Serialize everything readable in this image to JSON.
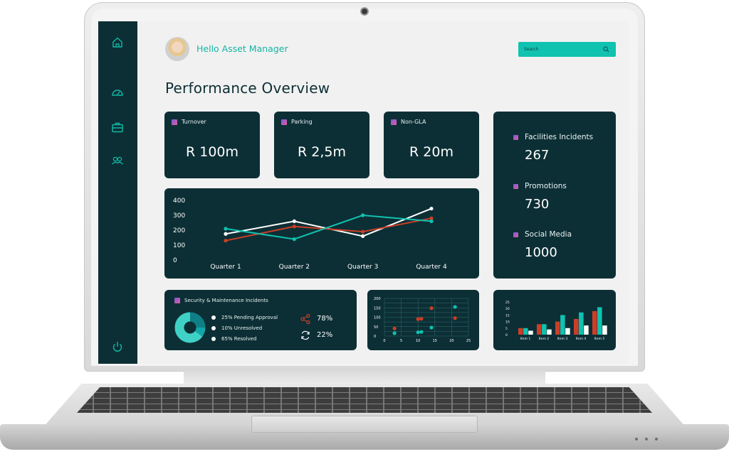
{
  "app": {
    "greeting": "Hello Asset Manager",
    "search_placeholder": "Search",
    "page_title": "Performance Overview"
  },
  "sidebar": {
    "items": [
      {
        "icon": "home-icon"
      },
      {
        "icon": "dashboard-gauge-icon"
      },
      {
        "icon": "briefcase-icon"
      },
      {
        "icon": "users-icon"
      },
      {
        "icon": "power-icon"
      }
    ]
  },
  "kpis": [
    {
      "label": "Turnover",
      "value": "R 100m"
    },
    {
      "label": "Parking",
      "value": "R 2,5m"
    },
    {
      "label": "Non-GLA",
      "value": "R 20m"
    }
  ],
  "side_stats": [
    {
      "label": "Facilities Incidents",
      "value": "267"
    },
    {
      "label": "Promotions",
      "value": "730"
    },
    {
      "label": "Social Media",
      "value": "1000"
    }
  ],
  "security": {
    "title": "Security & Maintenance Incidents",
    "legend": [
      {
        "label": "25% Pending Approval",
        "value": 25
      },
      {
        "label": "10% Unresolved",
        "value": 10
      },
      {
        "label": "65% Resolved",
        "value": 65
      }
    ],
    "share_pct": "78%",
    "refresh_pct": "22%"
  },
  "colors": {
    "dark": "#0c2f35",
    "teal": "#10c2b0",
    "red": "#cc3e27",
    "white": "#ffffff",
    "donut": [
      "#0f7f86",
      "#12a6a8",
      "#3fd1c6"
    ]
  },
  "chart_data": [
    {
      "type": "line",
      "categories": [
        "Quarter 1",
        "Quarter 2",
        "Quarter 3",
        "Quarter 4"
      ],
      "yticks": [
        0,
        100,
        200,
        300,
        400
      ],
      "ylim": [
        0,
        400
      ],
      "grid": false,
      "series": [
        {
          "color": "#ffffff",
          "values": [
            175,
            260,
            160,
            345
          ]
        },
        {
          "color": "#cc3e27",
          "values": [
            130,
            225,
            190,
            280
          ]
        },
        {
          "color": "#10c2b0",
          "values": [
            210,
            140,
            300,
            260
          ]
        }
      ]
    },
    {
      "type": "pie",
      "labels": [
        "25% Pending Approval",
        "10% Unresolved",
        "65% Resolved"
      ],
      "values": [
        25,
        10,
        65
      ],
      "donut": true
    },
    {
      "type": "scatter",
      "xlim": [
        0,
        25
      ],
      "ylim": [
        0,
        200
      ],
      "xticks": [
        0,
        5,
        10,
        15,
        20,
        25
      ],
      "yticks": [
        0,
        25,
        50,
        75,
        100,
        125,
        150,
        175,
        200
      ],
      "grid": true,
      "series": [
        {
          "color": "#cc3e27",
          "points": [
            [
              3,
              40
            ],
            [
              10,
              90
            ],
            [
              11,
              92
            ],
            [
              14,
              148
            ],
            [
              21,
              95
            ]
          ]
        },
        {
          "color": "#10c2b0",
          "points": [
            [
              3,
              15
            ],
            [
              10,
              20
            ],
            [
              11,
              22
            ],
            [
              14,
              45
            ],
            [
              21,
              155
            ]
          ]
        }
      ]
    },
    {
      "type": "bar",
      "categories": [
        "Item 1",
        "Item 2",
        "Item 3",
        "Item 4",
        "Item 5"
      ],
      "ylim": [
        0,
        25
      ],
      "yticks": [
        0,
        5,
        10,
        15,
        20,
        25
      ],
      "series": [
        {
          "color": "#cc3e27",
          "values": [
            5,
            8,
            10,
            12,
            18
          ]
        },
        {
          "color": "#10c2b0",
          "values": [
            5,
            8,
            15,
            17,
            21
          ]
        },
        {
          "color": "#ffffff",
          "values": [
            3,
            4,
            5,
            7,
            7
          ]
        }
      ]
    }
  ]
}
